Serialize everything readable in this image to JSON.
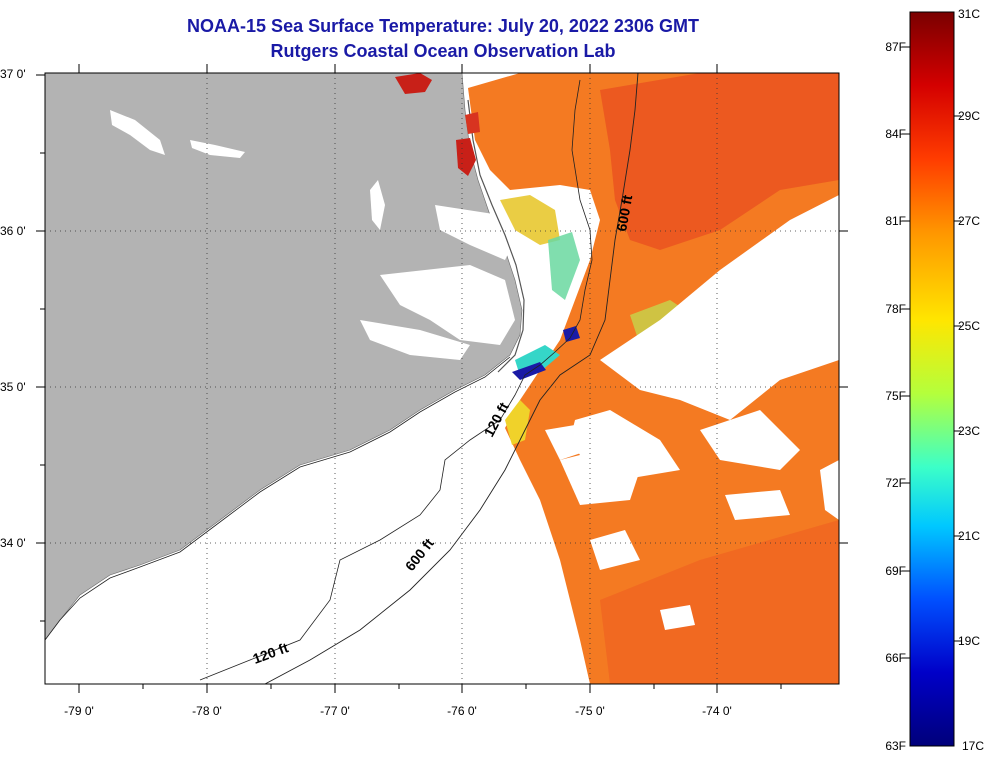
{
  "title": "NOAA-15 Sea Surface Temperature:  July 20, 2022 2306 GMT",
  "subtitle": "Rutgers Coastal Ocean Observation Lab",
  "map": {
    "lat_labels": [
      "37 0'",
      "36 0'",
      "35 0'",
      "34 0'"
    ],
    "lon_labels": [
      "-79 0'",
      "-78 0'",
      "-77 0'",
      "-76 0'",
      "-75 0'",
      "-74 0'"
    ],
    "contour_labels": [
      "600 ft",
      "120 ft",
      "600 ft",
      "120 ft"
    ],
    "colors": {
      "land": "#b3b3b3",
      "no_data": "#ffffff",
      "warm_water": "#f47a22",
      "hot_water": "#e0241c",
      "cool_water": "#35d6c8",
      "cold_water": "#1a1aa6"
    }
  },
  "colorbar": {
    "f_labels": [
      "87F",
      "84F",
      "81F",
      "78F",
      "75F",
      "72F",
      "69F",
      "66F",
      "63F"
    ],
    "c_labels": [
      "31C",
      "29C",
      "27C",
      "25C",
      "23C",
      "21C",
      "19C",
      "17C"
    ],
    "stops": [
      "#7a0000",
      "#d40000",
      "#ff3c00",
      "#ff9600",
      "#ffe600",
      "#b4ff3c",
      "#3cffc8",
      "#00c8ff",
      "#0050ff",
      "#0000c8",
      "#00007a"
    ]
  }
}
